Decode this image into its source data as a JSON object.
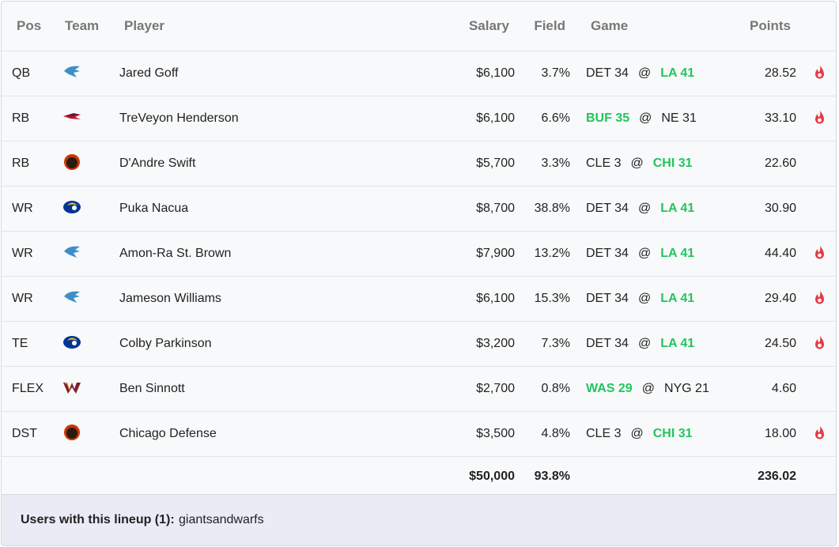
{
  "table": {
    "header": [
      "Pos",
      "Team",
      "Player",
      "Salary",
      "Field",
      "Game",
      "Points"
    ],
    "rows": [
      {
        "pos": "QB",
        "player": "Jared Goff",
        "salary": "$6,100",
        "field": "3.7%",
        "game": {
          "away": "DET 34",
          "at": "@",
          "home": "LA 41",
          "winner": "home"
        },
        "points": "28.52",
        "hot": true
      },
      {
        "pos": "RB",
        "player": "TreVeyon Henderson",
        "salary": "$6,100",
        "field": "6.6%",
        "game": {
          "away": "BUF 35",
          "at": "@",
          "home": "NE 31",
          "winner": "away"
        },
        "points": "33.10",
        "hot": true
      },
      {
        "pos": "RB",
        "player": "D'Andre Swift",
        "salary": "$5,700",
        "field": "3.3%",
        "game": {
          "away": "CLE 3",
          "at": "@",
          "home": "CHI 31",
          "winner": "home"
        },
        "points": "22.60",
        "hot": false
      },
      {
        "pos": "WR",
        "player": "Puka Nacua",
        "salary": "$8,700",
        "field": "38.8%",
        "game": {
          "away": "DET 34",
          "at": "@",
          "home": "LA 41",
          "winner": "home"
        },
        "points": "30.90",
        "hot": false
      },
      {
        "pos": "WR",
        "player": "Amon-Ra St. Brown",
        "salary": "$7,900",
        "field": "13.2%",
        "game": {
          "away": "DET 34",
          "at": "@",
          "home": "LA 41",
          "winner": "home"
        },
        "points": "44.40",
        "hot": true
      },
      {
        "pos": "WR",
        "player": "Jameson Williams",
        "salary": "$6,100",
        "field": "15.3%",
        "game": {
          "away": "DET 34",
          "at": "@",
          "home": "LA 41",
          "winner": "home"
        },
        "points": "29.40",
        "hot": true
      },
      {
        "pos": "TE",
        "player": "Colby Parkinson",
        "salary": "$3,200",
        "field": "7.3%",
        "game": {
          "away": "DET 34",
          "at": "@",
          "home": "LA 41",
          "winner": "home"
        },
        "points": "24.50",
        "hot": true
      },
      {
        "pos": "FLEX",
        "player": "Ben Sinnott",
        "salary": "$2,700",
        "field": "0.8%",
        "game": {
          "away": "WAS 29",
          "at": "@",
          "home": "NYG 21",
          "winner": "away"
        },
        "points": "4.60",
        "hot": false
      },
      {
        "pos": "DST",
        "player": "Chicago Defense",
        "salary": "$3,500",
        "field": "4.8%",
        "game": {
          "away": "CLE 3",
          "at": "@",
          "home": "CHI 31",
          "winner": "home"
        },
        "points": "18.00",
        "hot": true
      }
    ],
    "totals": {
      "salary": "$50,000",
      "field": "93.8%",
      "points": "236.02"
    }
  },
  "footer": {
    "label": "Users with this lineup (1):",
    "users": "giantsandwarfs"
  }
}
